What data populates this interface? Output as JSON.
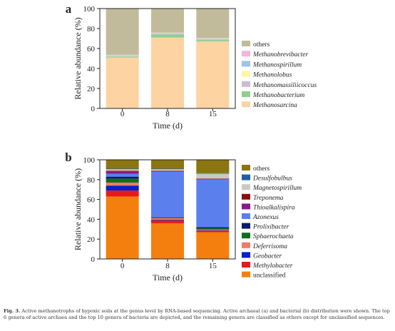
{
  "chart_data": [
    {
      "type": "bar",
      "stacked": true,
      "panel_label": "a",
      "ylabel": "Relative abundance (%)",
      "xlabel": "Time (d)",
      "categories": [
        "0",
        "8",
        "15"
      ],
      "ylim": [
        0,
        100
      ],
      "yticks": [
        "0",
        "20",
        "40",
        "60",
        "80",
        "100"
      ],
      "legend_position": "right",
      "series": [
        {
          "name": "Methanosarcina",
          "color": "#fcd3a1",
          "values": [
            51,
            71,
            67
          ]
        },
        {
          "name": "Methanobacterium",
          "color": "#8fcf8f",
          "values": [
            1,
            3,
            1.5
          ]
        },
        {
          "name": "Methanomassiliicoccus",
          "color": "#c8bcd4",
          "values": [
            0.6,
            1,
            0.8
          ]
        },
        {
          "name": "Methanolobus",
          "color": "#fff5a0",
          "values": [
            0.4,
            0.4,
            0.4
          ]
        },
        {
          "name": "Methanospirillum",
          "color": "#9cc3ea",
          "values": [
            0.5,
            0.3,
            0.5
          ]
        },
        {
          "name": "Methanobrevibacter",
          "color": "#f6b3dc",
          "values": [
            0.3,
            0.2,
            0.3
          ]
        },
        {
          "name": "others",
          "color": "#c2bb9b",
          "values": [
            46.2,
            24.1,
            29.5
          ]
        }
      ]
    },
    {
      "type": "bar",
      "stacked": true,
      "panel_label": "b",
      "ylabel": "Relative abundance (%)",
      "xlabel": "Time (d)",
      "categories": [
        "0",
        "8",
        "15"
      ],
      "ylim": [
        0,
        100
      ],
      "yticks": [
        "0",
        "20",
        "40",
        "60",
        "80",
        "100"
      ],
      "legend_position": "right",
      "series": [
        {
          "name": "unclassified",
          "color": "#f47f0e",
          "values": [
            63,
            36,
            27
          ]
        },
        {
          "name": "Methylobacter",
          "color": "#e51a1a",
          "values": [
            6,
            3,
            1.5
          ]
        },
        {
          "name": "Geobacter",
          "color": "#0a1fc8",
          "values": [
            5,
            0.6,
            0.5
          ]
        },
        {
          "name": "Deferrisoma",
          "color": "#f07a6a",
          "values": [
            3,
            1.4,
            0.6
          ]
        },
        {
          "name": "Sphaerochaeta",
          "color": "#0f6e1f",
          "values": [
            4,
            0.5,
            1.4
          ]
        },
        {
          "name": "Prolixibacter",
          "color": "#0c1a6b",
          "values": [
            2,
            0.5,
            1
          ]
        },
        {
          "name": "Azonexus",
          "color": "#5b80ee",
          "values": [
            3,
            46,
            48
          ]
        },
        {
          "name": "Thioalkalispira",
          "color": "#861a86",
          "values": [
            2,
            0.5,
            0.5
          ]
        },
        {
          "name": "Treponema",
          "color": "#8b0f0f",
          "values": [
            1,
            0.5,
            0.5
          ]
        },
        {
          "name": "Magnetospirillum",
          "color": "#c8c8c8",
          "values": [
            1.5,
            1.5,
            5
          ]
        },
        {
          "name": "Desulfobulbus",
          "color": "#1f5fa8",
          "values": [
            0.5,
            0.5,
            0.5
          ]
        },
        {
          "name": "others",
          "color": "#8a7512",
          "values": [
            9,
            9,
            13.5
          ]
        }
      ]
    }
  ],
  "caption": {
    "label": "Fig. 3.",
    "text": "Active methanotrophs of hypoxic soils at the genus level by RNA-based sequencing. Active archaeal (a) and bacterial (b) distribution were shown. The top 6 genera of active archaea and the top 10 genera of bacteria are depicted, and the remaining genera are classified as others except for unclassified sequences."
  }
}
